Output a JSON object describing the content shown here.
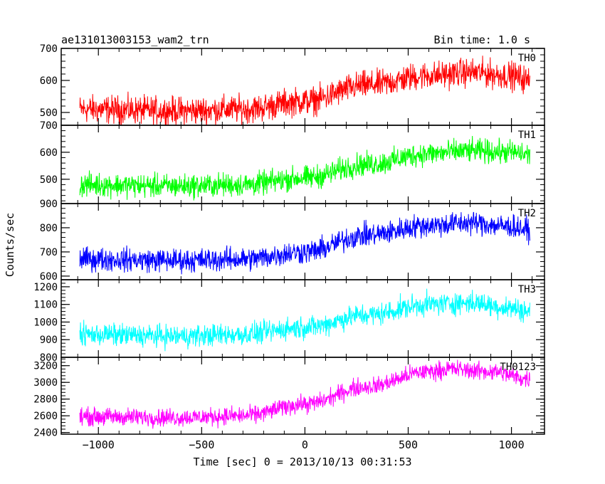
{
  "header": {
    "title": "ae131013003153_wam2_trn",
    "bin_time": "Bin time: 1.0 s"
  },
  "axes": {
    "xlabel": "Time [sec] 0 = 2013/10/13 00:31:53",
    "ylabel": "Counts/sec"
  },
  "chart_data": {
    "type": "line",
    "title": "ae131013003153_wam2_trn",
    "xlabel": "Time [sec] 0 = 2013/10/13 00:31:53",
    "ylabel": "Counts/sec",
    "xlim": [
      -1180,
      1160
    ],
    "x_range": [
      -1090,
      1090
    ],
    "x_ticks": [
      -1000,
      -500,
      0,
      500,
      1000
    ],
    "grid": false,
    "legend": "none",
    "panels": [
      {
        "name": "TH0",
        "color": "#ff0000",
        "ylim": [
          460,
          700
        ],
        "y_ticks": [
          500,
          600,
          700
        ],
        "trend": {
          "x": [
            -1090,
            -600,
            -300,
            0,
            300,
            600,
            800,
            1000,
            1090
          ],
          "y": [
            510,
            505,
            510,
            535,
            585,
            615,
            625,
            615,
            600
          ]
        },
        "noise_amplitude": 45
      },
      {
        "name": "TH1",
        "color": "#00ff00",
        "ylim": [
          410,
          700
        ],
        "y_ticks": [
          500,
          600,
          700
        ],
        "trend": {
          "x": [
            -1090,
            -600,
            -300,
            0,
            300,
            600,
            800,
            1000,
            1090
          ],
          "y": [
            480,
            475,
            480,
            505,
            555,
            595,
            605,
            600,
            590
          ]
        },
        "noise_amplitude": 45
      },
      {
        "name": "TH2",
        "color": "#0000ff",
        "ylim": [
          585,
          900
        ],
        "y_ticks": [
          600,
          700,
          800,
          900
        ],
        "trend": {
          "x": [
            -1090,
            -600,
            -300,
            0,
            300,
            600,
            800,
            1000,
            1090
          ],
          "y": [
            670,
            665,
            670,
            700,
            770,
            810,
            820,
            805,
            790
          ]
        },
        "noise_amplitude": 50
      },
      {
        "name": "TH3",
        "color": "#00ffff",
        "ylim": [
          800,
          1240
        ],
        "y_ticks": [
          800,
          900,
          1000,
          1100,
          1200
        ],
        "trend": {
          "x": [
            -1090,
            -600,
            -300,
            0,
            300,
            600,
            800,
            1000,
            1090
          ],
          "y": [
            930,
            920,
            930,
            970,
            1040,
            1100,
            1110,
            1080,
            1060
          ]
        },
        "noise_amplitude": 65
      },
      {
        "name": "TH0123",
        "color": "#ff00ff",
        "ylim": [
          2380,
          3300
        ],
        "y_ticks": [
          2400,
          2600,
          2800,
          3000,
          3200
        ],
        "trend": {
          "x": [
            -1090,
            -600,
            -300,
            0,
            300,
            600,
            700,
            900,
            1090
          ],
          "y": [
            2590,
            2580,
            2600,
            2740,
            2950,
            3130,
            3160,
            3130,
            3040
          ]
        },
        "noise_amplitude": 110
      }
    ]
  }
}
